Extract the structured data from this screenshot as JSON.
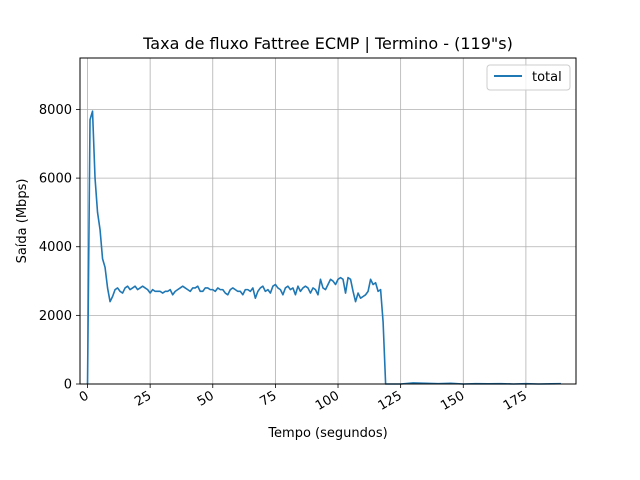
{
  "chart_data": {
    "type": "line",
    "title": "Taxa de fluxo Fattree ECMP | Termino - (119\"s)",
    "xlabel": "Tempo (segundos)",
    "ylabel": "Saída (Mbps)",
    "xlim": [
      -3,
      195
    ],
    "ylim": [
      0,
      9500
    ],
    "xticks": [
      0,
      25,
      50,
      75,
      100,
      125,
      150,
      175
    ],
    "yticks": [
      0,
      2000,
      4000,
      6000,
      8000
    ],
    "xtick_rotation": 30,
    "grid": true,
    "legend": "top-right",
    "colors": {
      "total": "#1f77b4"
    },
    "series": [
      {
        "name": "total",
        "x": [
          0,
          1,
          2,
          3,
          4,
          5,
          6,
          7,
          8,
          9,
          10,
          11,
          12,
          13,
          14,
          15,
          16,
          17,
          18,
          19,
          20,
          21,
          22,
          23,
          24,
          25,
          26,
          27,
          28,
          29,
          30,
          31,
          32,
          33,
          34,
          35,
          36,
          37,
          38,
          39,
          40,
          41,
          42,
          43,
          44,
          45,
          46,
          47,
          48,
          49,
          50,
          51,
          52,
          53,
          54,
          55,
          56,
          57,
          58,
          59,
          60,
          61,
          62,
          63,
          64,
          65,
          66,
          67,
          68,
          69,
          70,
          71,
          72,
          73,
          74,
          75,
          76,
          77,
          78,
          79,
          80,
          81,
          82,
          83,
          84,
          85,
          86,
          87,
          88,
          89,
          90,
          91,
          92,
          93,
          94,
          95,
          96,
          97,
          98,
          99,
          100,
          101,
          102,
          103,
          104,
          105,
          106,
          107,
          108,
          109,
          110,
          111,
          112,
          113,
          114,
          115,
          116,
          117,
          118,
          119,
          120,
          125,
          130,
          135,
          140,
          145,
          150,
          155,
          160,
          165,
          170,
          175,
          180,
          185,
          189
        ],
        "values": [
          0,
          7700,
          7950,
          6000,
          5000,
          4500,
          3650,
          3400,
          2800,
          2400,
          2550,
          2750,
          2800,
          2700,
          2650,
          2800,
          2850,
          2750,
          2800,
          2850,
          2750,
          2800,
          2850,
          2800,
          2750,
          2650,
          2750,
          2700,
          2700,
          2700,
          2650,
          2700,
          2700,
          2750,
          2600,
          2700,
          2750,
          2800,
          2850,
          2800,
          2750,
          2700,
          2800,
          2800,
          2850,
          2700,
          2700,
          2800,
          2800,
          2750,
          2750,
          2700,
          2800,
          2750,
          2750,
          2650,
          2600,
          2750,
          2800,
          2750,
          2700,
          2700,
          2600,
          2750,
          2750,
          2700,
          2800,
          2500,
          2700,
          2800,
          2850,
          2700,
          2750,
          2650,
          2850,
          2900,
          2800,
          2750,
          2600,
          2800,
          2850,
          2750,
          2800,
          2600,
          2850,
          2700,
          2800,
          2850,
          2800,
          2650,
          2800,
          2750,
          2600,
          3050,
          2800,
          2750,
          2900,
          3050,
          3000,
          2900,
          3050,
          3100,
          3050,
          2650,
          3100,
          3050,
          2700,
          2400,
          2650,
          2500,
          2550,
          2600,
          2700,
          3050,
          2900,
          2950,
          2700,
          2750,
          1800,
          0,
          0,
          0,
          30,
          20,
          10,
          20,
          0,
          10,
          5,
          10,
          0,
          10,
          0,
          5,
          10
        ]
      }
    ]
  }
}
